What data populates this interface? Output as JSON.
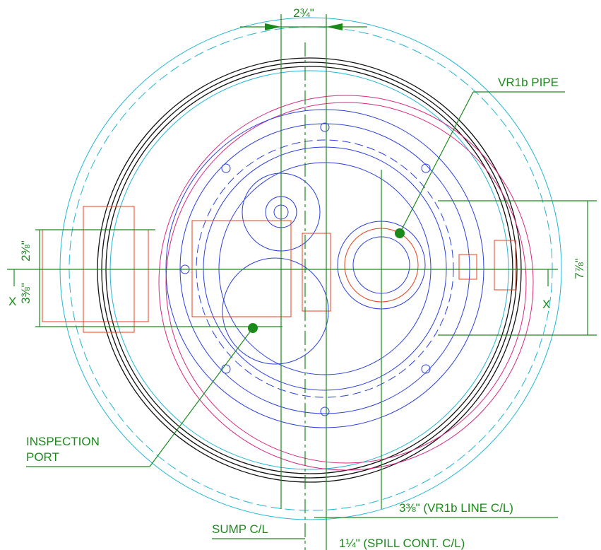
{
  "dimensions": {
    "top_width": "2¾\"",
    "upper_offset": "2⅜\"",
    "lower_offset": "3⅜\"",
    "right_height": "7⅞\"",
    "vr1b_line": "3⅜\" (VR1b LINE C/L)",
    "spill_cont": "1¼\" (SPILL CONT. C/L)"
  },
  "labels": {
    "vr1b_pipe": "VR1b PIPE",
    "inspection_port": [
      "INSPECTION",
      "PORT"
    ],
    "sump_cl": "SUMP C/L",
    "section_left": "X",
    "section_right": "X"
  }
}
